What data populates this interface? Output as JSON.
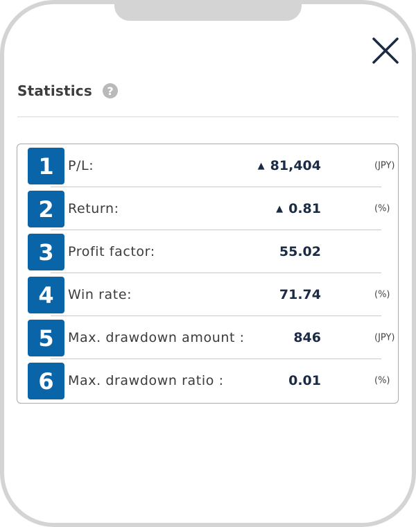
{
  "header": {
    "title": "Statistics",
    "help_icon": "question-circle-icon",
    "close_icon": "close-icon"
  },
  "stats": [
    {
      "number": "1",
      "label": "P/L:",
      "arrow": "▲",
      "value": "81,404",
      "unit": "(JPY)"
    },
    {
      "number": "2",
      "label": "Return:",
      "arrow": "▲",
      "value": "0.81",
      "unit": "(%)"
    },
    {
      "number": "3",
      "label": "Profit factor:",
      "arrow": "",
      "value": "55.02",
      "unit": ""
    },
    {
      "number": "4",
      "label": "Win rate:",
      "arrow": "",
      "value": "71.74",
      "unit": "(%)"
    },
    {
      "number": "5",
      "label": "Max. drawdown amount :",
      "arrow": "",
      "value": "846",
      "unit": "(JPY)"
    },
    {
      "number": "6",
      "label": "Max. drawdown ratio :",
      "arrow": "",
      "value": "0.01",
      "unit": "(%)"
    }
  ],
  "colors": {
    "badge": "#0a64a8",
    "value_text": "#1c2b44",
    "frame": "#d4d4d4"
  }
}
